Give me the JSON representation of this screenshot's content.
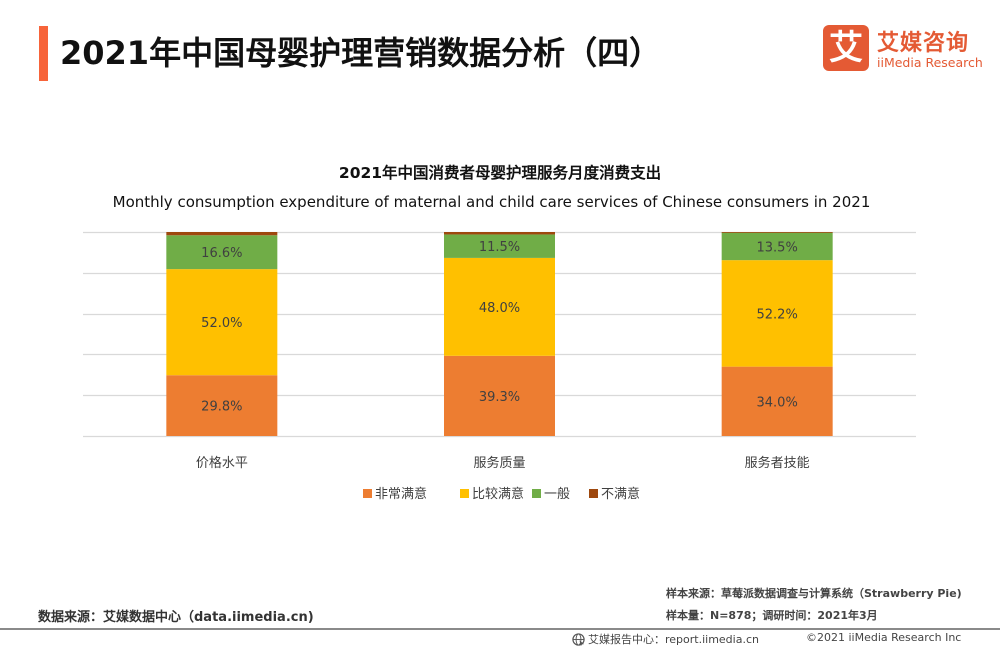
{
  "header": {
    "title": "2021年中国母婴护理营销数据分析（四）",
    "logo_mark": "艾",
    "logo_cn": "艾媒咨询",
    "logo_en": "iiMedia Research",
    "accent_color": "#f7643a",
    "logo_color": "#e45a34"
  },
  "chart_data": {
    "type": "bar",
    "stacked": true,
    "title": "2021年中国消费者母婴护理服务月度消费支出",
    "subtitle": "Monthly consumption expenditure of maternal and child care services of Chinese consumers in 2021",
    "xlabel": "",
    "ylabel": "",
    "ylim": [
      0,
      100
    ],
    "grid": true,
    "legend_position": "bottom",
    "categories": [
      "价格水平",
      "服务质量",
      "服务者技能"
    ],
    "series": [
      {
        "name": "非常满意",
        "color": "#ed7d31",
        "values": [
          29.8,
          39.3,
          34.0
        ],
        "labels": [
          "29.8%",
          "39.3%",
          "34.0%"
        ]
      },
      {
        "name": "比较满意",
        "color": "#ffc000",
        "values": [
          52.0,
          48.0,
          52.2
        ],
        "labels": [
          "52.0%",
          "48.0%",
          "52.2%"
        ]
      },
      {
        "name": "一般",
        "color": "#70ad47",
        "values": [
          16.6,
          11.5,
          13.5
        ],
        "labels": [
          "16.6%",
          "11.5%",
          "13.5%"
        ]
      },
      {
        "name": "不满意",
        "color": "#9e480e",
        "values": [
          1.6,
          1.2,
          0.3
        ],
        "labels": [
          "",
          "",
          ""
        ]
      }
    ]
  },
  "footer": {
    "data_source": "数据来源：艾媒数据中心（data.iimedia.cn)",
    "sample_source": "样本来源：草莓派数据调查与计算系统（Strawberry Pie)",
    "sample_info": "样本量：N=878；调研时间：2021年3月",
    "report_center": "艾媒报告中心：report.iimedia.cn",
    "copyright": "©2021  iiMedia Research  Inc"
  }
}
